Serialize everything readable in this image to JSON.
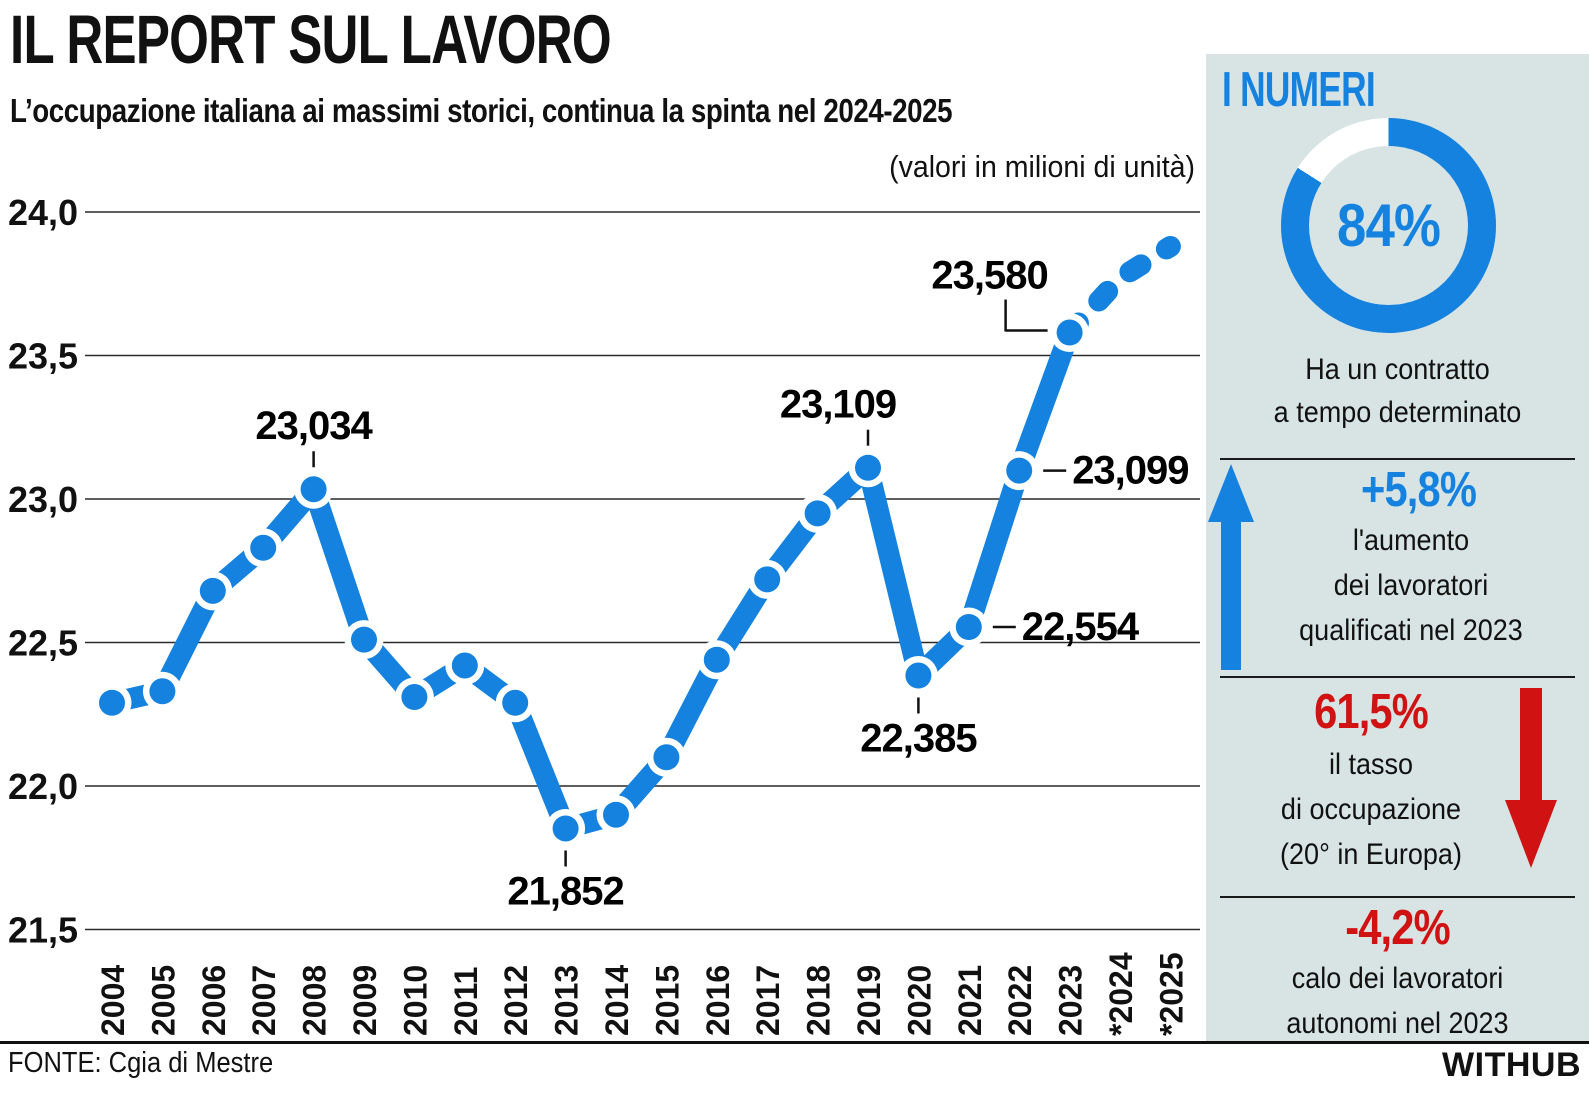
{
  "header": {
    "title": "IL REPORT SUL LAVORO",
    "subtitle": "L’occupazione italiana ai massimi storici, continua la spinta nel 2024-2025"
  },
  "chart_data": {
    "type": "line",
    "note": "(valori in milioni di unità)",
    "x": [
      "2004",
      "2005",
      "2006",
      "2007",
      "2008",
      "2009",
      "2010",
      "2011",
      "2012",
      "2013",
      "2014",
      "2015",
      "2016",
      "2017",
      "2018",
      "2019",
      "2020",
      "2021",
      "2022",
      "2023",
      "*2024",
      "*2025"
    ],
    "series": [
      {
        "values": [
          22.29,
          22.33,
          22.68,
          22.83,
          23.034,
          22.51,
          22.31,
          22.42,
          22.29,
          21.852,
          21.9,
          22.1,
          22.44,
          22.72,
          22.95,
          23.109,
          22.385,
          22.554,
          23.099,
          23.58,
          23.77,
          23.88
        ]
      }
    ],
    "dashed_from_index": 19,
    "ylim": [
      21.5,
      24.0
    ],
    "yticks": [
      {
        "label": "24,0",
        "value": 24.0
      },
      {
        "label": "23,5",
        "value": 23.5
      },
      {
        "label": "23,0",
        "value": 23.0
      },
      {
        "label": "22,5",
        "value": 22.5
      },
      {
        "label": "22,0",
        "value": 22.0
      },
      {
        "label": "21,5",
        "value": 21.5
      }
    ],
    "grid": true,
    "legend": "none",
    "annotations": [
      {
        "x": "2008",
        "label": "23,034",
        "placement": "above",
        "dx": 0
      },
      {
        "x": "2013",
        "label": "21,852",
        "placement": "below",
        "dx": 0
      },
      {
        "x": "2019",
        "label": "23,109",
        "placement": "above",
        "dx": -30
      },
      {
        "x": "2020",
        "label": "22,385",
        "placement": "below",
        "dx": 0
      },
      {
        "x": "2021",
        "label": "22,554",
        "placement": "right",
        "dx": 0
      },
      {
        "x": "2022",
        "label": "23,099",
        "placement": "right",
        "dx": 0
      },
      {
        "x": "2023",
        "label": "23,580",
        "placement": "elbow-left",
        "dx": 0
      }
    ]
  },
  "sidebar": {
    "title": "I NUMERI",
    "donut": {
      "value_label": "84%",
      "percent": 84,
      "caption": "Ha un contratto\na tempo determinato"
    },
    "stats": [
      {
        "value": "+5,8%",
        "caption": "l'aumento\ndei lavoratori\nqualificati nel 2023",
        "icon": "up-arrow",
        "color": "blue"
      },
      {
        "value": "61,5%",
        "caption": "il tasso\ndi occupazione\n(20° in Europa)",
        "icon": "down-arrow",
        "color": "red"
      },
      {
        "value": "-4,2%",
        "caption": "calo dei lavoratori\nautonomi nel 2023",
        "icon": "none",
        "color": "red"
      }
    ]
  },
  "footer": {
    "source": "FONTE: Cgia di Mestre",
    "brand": "WITHUB"
  },
  "colors": {
    "accent_blue": "#1482de",
    "accent_red": "#d01212",
    "sidebar_bg": "#d8e4e4",
    "grid_line": "#2a2a2a",
    "text": "#111111"
  }
}
